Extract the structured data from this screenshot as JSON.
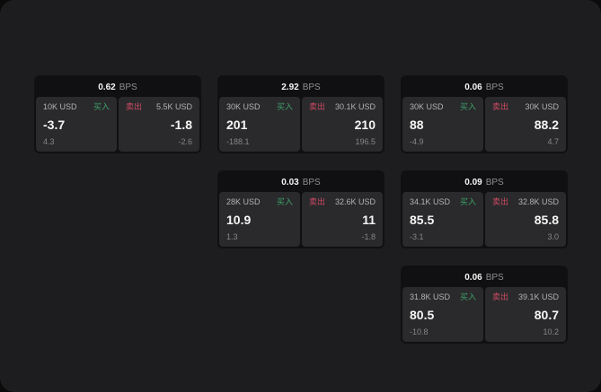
{
  "labels": {
    "bps_unit": "BPS",
    "buy": "买入",
    "sell": "卖出"
  },
  "colors": {
    "page_bg": "#0b0b0c",
    "panel_bg": "#1d1d1f",
    "card_bg": "#101012",
    "cell_bg": "#2a2a2c",
    "text_primary": "#f5f5f5",
    "text_secondary": "#86868a",
    "buy_green": "#3ea169",
    "sell_red": "#ce4a63"
  },
  "cards": [
    {
      "bps": "0.62",
      "buy": {
        "amount": "10K USD",
        "value": "-3.7",
        "delta": "4.3"
      },
      "sell": {
        "amount": "5.5K USD",
        "value": "-1.8",
        "delta": "-2.6"
      }
    },
    {
      "bps": "2.92",
      "buy": {
        "amount": "30K USD",
        "value": "201",
        "delta": "-188.1"
      },
      "sell": {
        "amount": "30.1K USD",
        "value": "210",
        "delta": "196.5"
      }
    },
    {
      "bps": "0.06",
      "buy": {
        "amount": "30K USD",
        "value": "88",
        "delta": "-4.9"
      },
      "sell": {
        "amount": "30K USD",
        "value": "88.2",
        "delta": "4.7"
      }
    },
    {
      "bps": "0.03",
      "buy": {
        "amount": "28K USD",
        "value": "10.9",
        "delta": "1.3"
      },
      "sell": {
        "amount": "32.6K USD",
        "value": "11",
        "delta": "-1.8"
      }
    },
    {
      "bps": "0.09",
      "buy": {
        "amount": "34.1K USD",
        "value": "85.5",
        "delta": "-3.1"
      },
      "sell": {
        "amount": "32.8K USD",
        "value": "85.8",
        "delta": "3.0"
      }
    },
    {
      "bps": "0.06",
      "buy": {
        "amount": "31.8K USD",
        "value": "80.5",
        "delta": "-10.8"
      },
      "sell": {
        "amount": "39.1K USD",
        "value": "80.7",
        "delta": "10.2"
      }
    }
  ]
}
